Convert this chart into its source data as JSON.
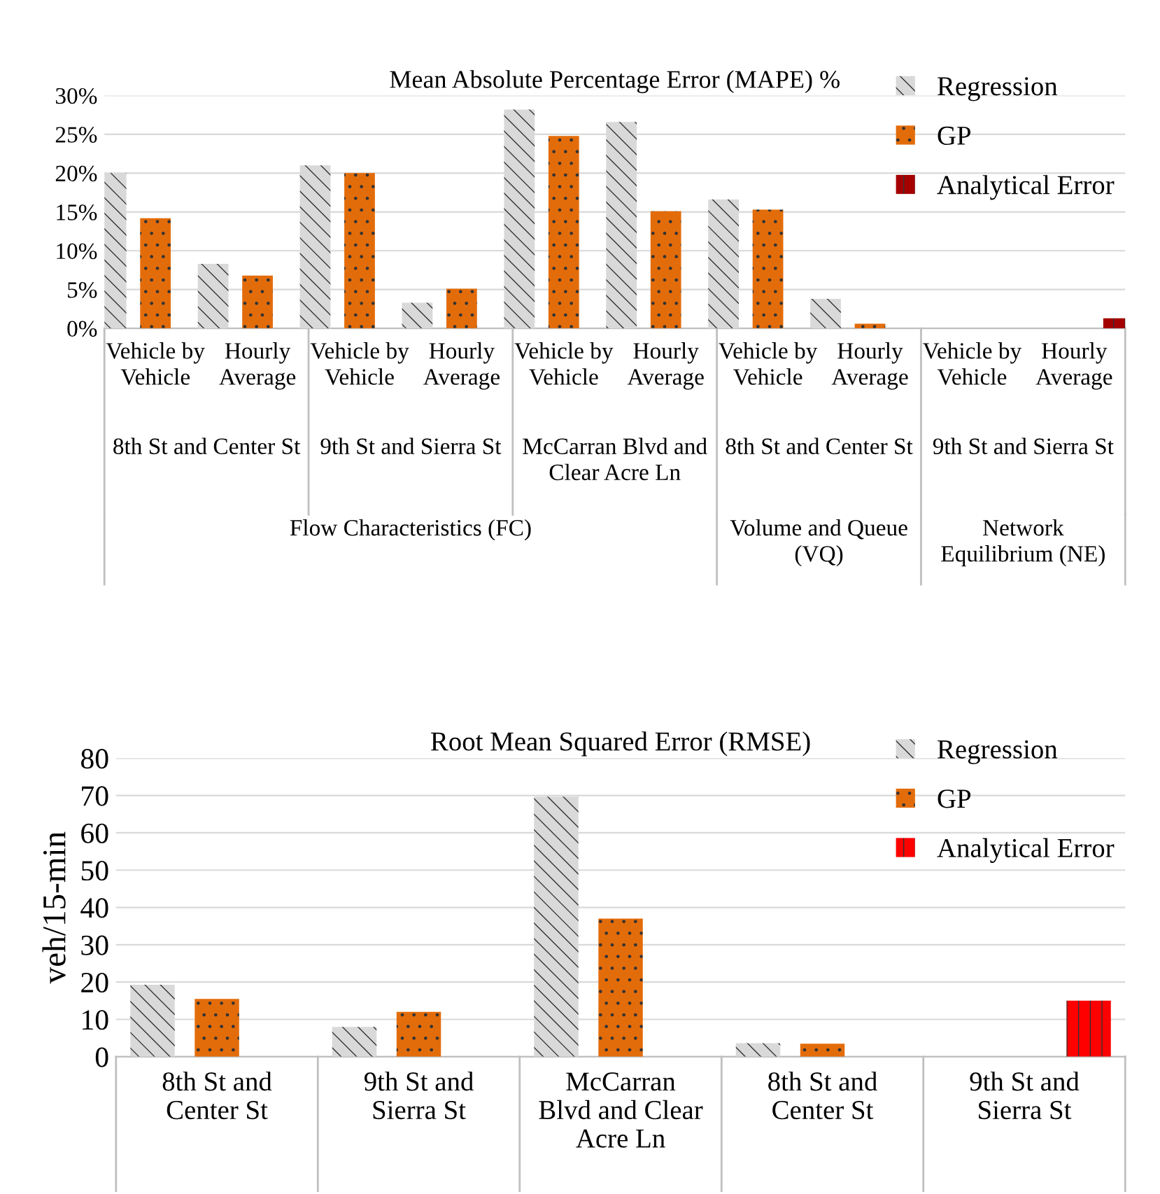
{
  "chart_data": [
    {
      "type": "bar",
      "title": "Mean Absolute Percentage Error (MAPE) %",
      "categories": [
        "Vehicle by Vehicle",
        "Hourly Average",
        "Vehicle by Vehicle",
        "Hourly Average",
        "Vehicle by Vehicle",
        "Hourly Average",
        "Vehicle by Vehicle",
        "Hourly Average",
        "Vehicle by Vehicle",
        "Hourly Average"
      ],
      "series": [
        {
          "name": "Regression",
          "color": "#d9d9d9",
          "values": [
            20,
            8.3,
            21,
            3.3,
            28.2,
            26.6,
            16.6,
            3.8,
            null,
            null
          ]
        },
        {
          "name": "GP",
          "color": "#e36c0a",
          "values": [
            14.2,
            6.8,
            20,
            5.1,
            24.8,
            15.1,
            15.3,
            0.6,
            null,
            null
          ]
        },
        {
          "name": "Analytical Error",
          "color": "#a50000",
          "values": [
            null,
            null,
            null,
            null,
            null,
            null,
            null,
            null,
            null,
            1.3
          ]
        }
      ],
      "ylim": [
        0,
        30
      ],
      "yticks": [
        {
          "value": 0,
          "label": "0%"
        },
        {
          "value": 5,
          "label": "5%"
        },
        {
          "value": 10,
          "label": "10%"
        },
        {
          "value": 15,
          "label": "15%"
        },
        {
          "value": 20,
          "label": "20%"
        },
        {
          "value": 25,
          "label": "25%"
        },
        {
          "value": 30,
          "label": "30%"
        }
      ],
      "annotations": [
        "8th St and Center St",
        "9th St and Sierra St",
        "McCarran Blvd and Clear Acre Ln",
        "8th St and Center St",
        "9th St and Sierra St",
        "Flow Characteristics (FC)",
        "Volume and Queue (VQ)",
        "Network Equilibrium (NE)"
      ],
      "grid": "y",
      "legend": "top right"
    },
    {
      "type": "bar",
      "title": "Root Mean Squared Error (RMSE)",
      "ylabel": "veh/15-min",
      "categories": [
        "8th St and Center St",
        "9th St and Sierra St",
        "McCarran Blvd and Clear Acre Ln",
        "8th St and Center St",
        "9th St and Sierra St"
      ],
      "series": [
        {
          "name": "Regression",
          "color": "#d9d9d9",
          "values": [
            19.3,
            8,
            69.7,
            3.6,
            null
          ]
        },
        {
          "name": "GP",
          "color": "#e36c0a",
          "values": [
            15.5,
            12,
            37,
            3.5,
            null
          ]
        },
        {
          "name": "Analytical Error",
          "color": "#ff0000",
          "values": [
            null,
            null,
            null,
            null,
            15
          ]
        }
      ],
      "ylim": [
        0,
        80
      ],
      "yticks": [
        0,
        10,
        20,
        30,
        40,
        50,
        60,
        70,
        80
      ],
      "grid": "y",
      "legend": "top right"
    }
  ]
}
